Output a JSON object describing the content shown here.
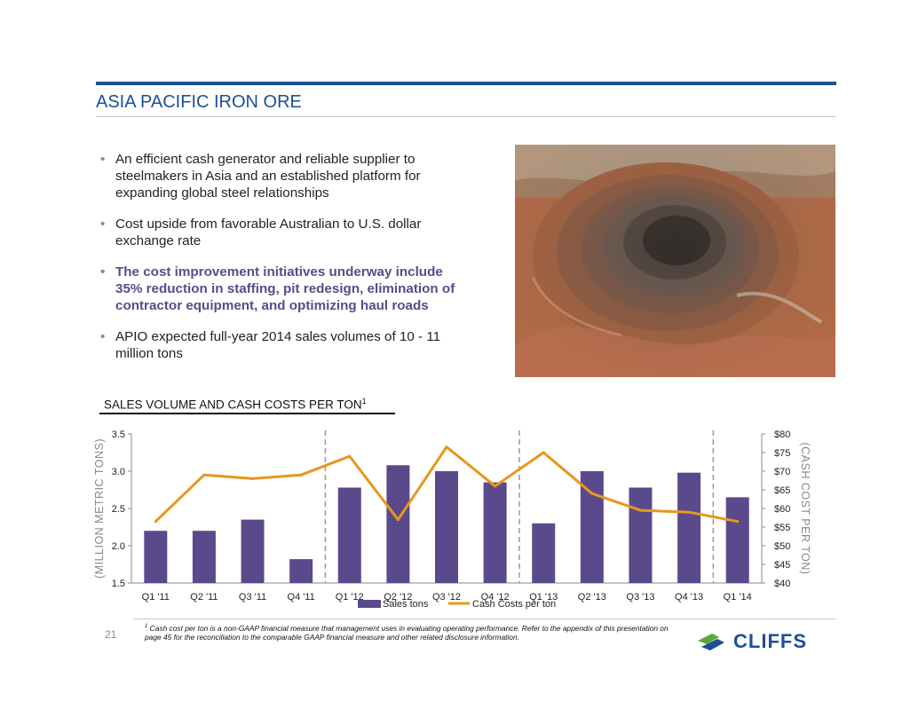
{
  "title": "ASIA PACIFIC IRON ORE",
  "bullets": [
    "An efficient cash generator and reliable supplier to steelmakers in Asia and an established platform for expanding global steel relationships",
    "Cost upside from favorable Australian to U.S. dollar exchange rate",
    "The cost improvement initiatives underway include 35% reduction in staffing, pit redesign, elimination of contractor equipment, and optimizing haul roads",
    "APIO expected full-year 2014 sales volumes of 10 - 11 million tons"
  ],
  "section_title": "SALES VOLUME AND CASH COSTS PER TON",
  "section_title_sup": "1",
  "chart_data": {
    "type": "bar",
    "categories": [
      "Q1 '11",
      "Q2 '11",
      "Q3 '11",
      "Q4 '11",
      "Q1 '12",
      "Q2 '12",
      "Q3 '12",
      "Q4 '12",
      "Q1 '13",
      "Q2 '13",
      "Q3 '13",
      "Q4 '13",
      "Q1 '14"
    ],
    "series": [
      {
        "name": "Sales tons",
        "type": "bar",
        "axis": "left",
        "color": "#5b4a8b",
        "values": [
          2.2,
          2.2,
          2.35,
          1.82,
          2.78,
          3.08,
          3.0,
          2.85,
          2.3,
          3.0,
          2.78,
          2.98,
          2.65
        ]
      },
      {
        "name": "Cash Costs per ton",
        "type": "line",
        "axis": "right",
        "color": "#e8961e",
        "values": [
          56.5,
          69,
          68,
          69,
          74,
          57,
          76.5,
          66,
          75,
          64,
          59.5,
          59,
          56.5
        ]
      }
    ],
    "ylabel": "(MILLION METRIC TONS)",
    "ylim": [
      1.5,
      3.5
    ],
    "yticks": [
      "1.5",
      "2.0",
      "2.5",
      "3.0",
      "3.5"
    ],
    "y2label": "(CASH COST PER TON)",
    "y2lim": [
      40,
      80
    ],
    "y2ticks": [
      "$40",
      "$45",
      "$50",
      "$55",
      "$60",
      "$65",
      "$70",
      "$75",
      "$80"
    ],
    "year_dividers_after": [
      "Q4 '11",
      "Q4 '12",
      "Q4 '13"
    ],
    "grid": false,
    "legend": "bottom"
  },
  "footnote_sup": "1",
  "footnote": "Cash cost per ton is a non-GAAP financial measure that management uses in evaluating operating performance. Refer to the appendix of this presentation on page 45 for the reconciliation to the comparable GAAP financial measure and other related disclosure information.",
  "page_number": "21",
  "logo_text": "CLIFFS",
  "colors": {
    "title_blue": "#1f4e96",
    "bar_purple": "#5b4a8b",
    "line_orange": "#e8961e",
    "logo_green": "#5aa93a"
  }
}
